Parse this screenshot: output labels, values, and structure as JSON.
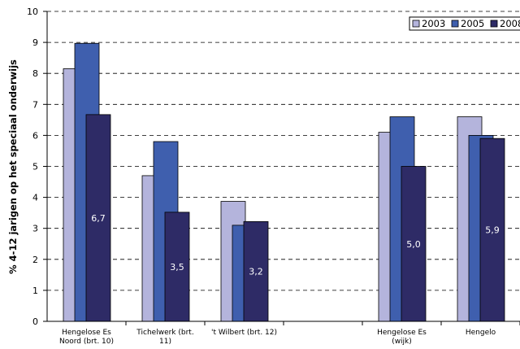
{
  "chart_data": {
    "type": "bar",
    "ylabel": "% 4-12 jarigen op het speciaal onderwijs",
    "ylim": [
      0,
      10
    ],
    "yticks": [
      "0",
      "1",
      "2",
      "3",
      "4",
      "5",
      "6",
      "7",
      "8",
      "9",
      "10"
    ],
    "grid": true,
    "legend_position": "top-right",
    "categories": [
      [
        "Hengelose Es",
        "Noord (brt. 10)"
      ],
      [
        "Tichelwerk (brt.",
        "11)"
      ],
      [
        "'t Wilbert (brt. 12)"
      ],
      [],
      [
        "Hengelose Es",
        "(wijk)"
      ],
      [
        "Hengelo"
      ]
    ],
    "series": [
      {
        "name": "2003",
        "color": "#b4b4dc",
        "values": [
          8.15,
          4.7,
          3.87,
          null,
          6.1,
          6.6
        ]
      },
      {
        "name": "2005",
        "color": "#3f5fae",
        "values": [
          8.97,
          5.8,
          3.1,
          null,
          6.6,
          6.0
        ]
      },
      {
        "name": "2008",
        "color": "#2e2b66",
        "values": [
          6.67,
          3.52,
          3.22,
          null,
          5.0,
          5.9
        ]
      }
    ],
    "data_labels": [
      {
        "category": 0,
        "series": 2,
        "text": "6,7"
      },
      {
        "category": 1,
        "series": 2,
        "text": "3,5"
      },
      {
        "category": 2,
        "series": 2,
        "text": "3,2"
      },
      {
        "category": 4,
        "series": 2,
        "text": "5,0"
      },
      {
        "category": 5,
        "series": 2,
        "text": "5,9"
      }
    ]
  }
}
